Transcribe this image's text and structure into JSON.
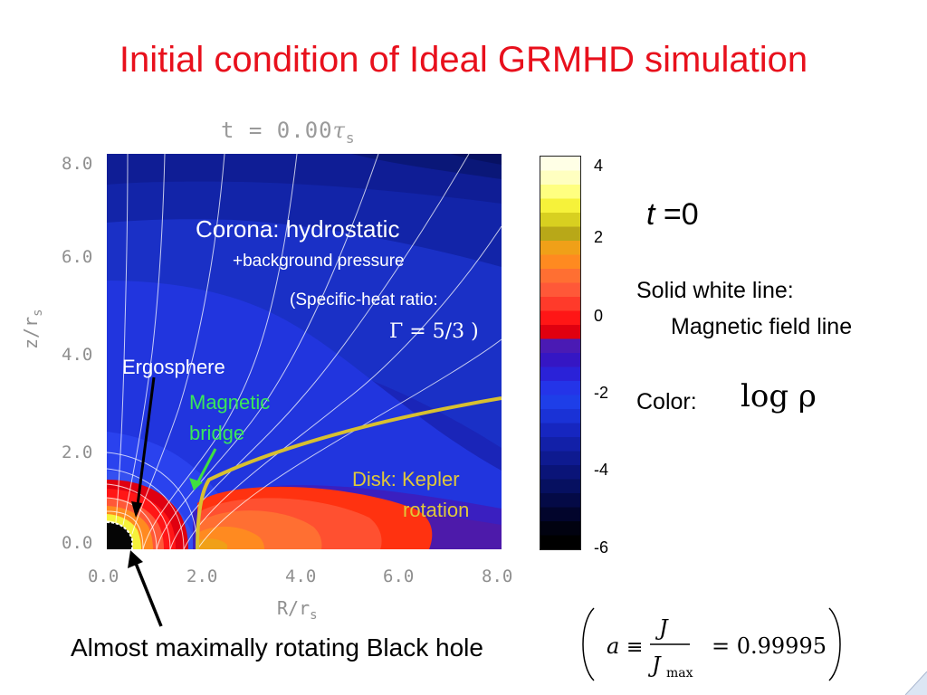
{
  "slide": {
    "title": "Initial condition of Ideal GRMHD simulation",
    "plot_time_label": "t = 0.00",
    "plot_time_symbol": "τ",
    "plot_time_sub": "s",
    "x_axis_label": "R/r",
    "x_axis_sub": "s",
    "y_axis_label": "z/r",
    "y_axis_sub": "s",
    "x_ticks": [
      "0.0",
      "2.0",
      "4.0",
      "6.0",
      "8.0"
    ],
    "y_ticks": [
      "8.0",
      "6.0",
      "4.0",
      "2.0",
      "0.0"
    ],
    "annotations": {
      "corona": "Corona: hydrostatic",
      "background": "+background pressure",
      "specific_heat": "(Specific-heat ratio:",
      "gamma": "Γ = 5/3 )",
      "ergosphere": "Ergosphere",
      "bridge_line1": "Magnetic",
      "bridge_line2": "bridge",
      "disk_line1": "Disk: Kepler",
      "disk_line2": "rotation"
    },
    "colorbar": {
      "ticks": [
        "4",
        "2",
        "0",
        "-2",
        "-4",
        "-6"
      ],
      "colors": [
        "#ffffe6",
        "#ffffc0",
        "#ffff80",
        "#f6f23a",
        "#d8d020",
        "#b8a818",
        "#f0a018",
        "#ff8a20",
        "#ff6f32",
        "#ff5838",
        "#ff3a2a",
        "#ff1616",
        "#e00010",
        "#4a1ab4",
        "#3516c4",
        "#2a22d8",
        "#2434e8",
        "#1e3ee8",
        "#1a32d6",
        "#1626c0",
        "#1220a8",
        "#0e1a90",
        "#0a1478",
        "#061060",
        "#040a46",
        "#02052c",
        "#010210",
        "#000000"
      ]
    },
    "right_panel": {
      "t_symbol": "t",
      "t_value": "=0",
      "solid_line_title": "Solid white line:",
      "solid_line_desc": "Magnetic field line",
      "color_label": "Color:",
      "color_formula": "log ρ"
    },
    "black_hole_caption": "Almost maximally rotating Black hole",
    "spin_formula": "a ≡ J / J_max = 0.99995"
  }
}
